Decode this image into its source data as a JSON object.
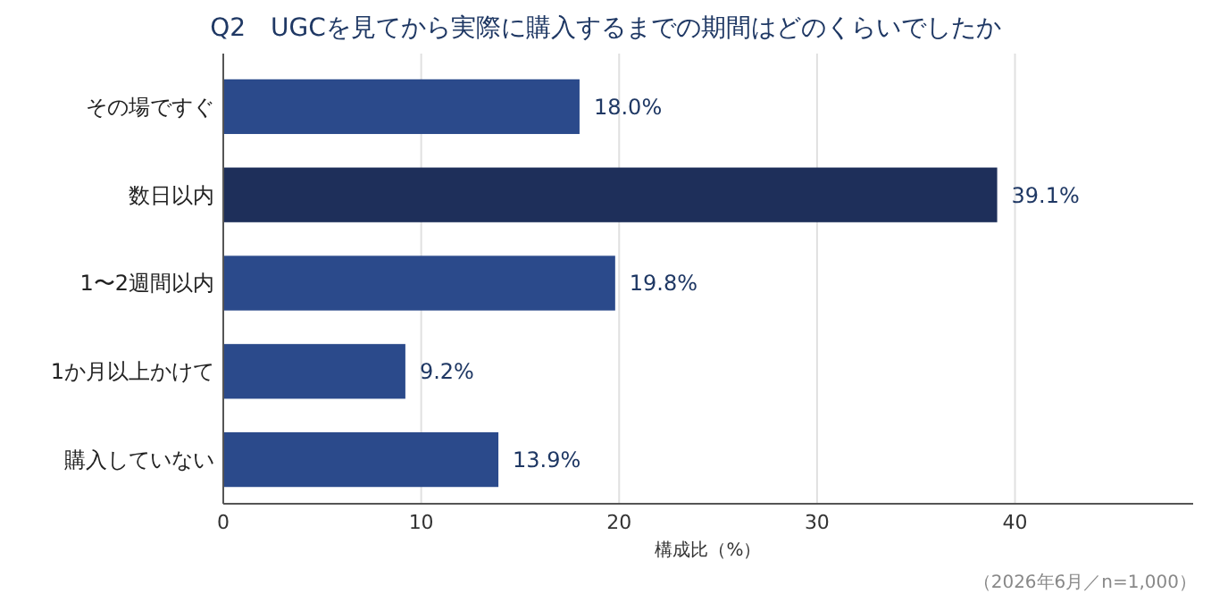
{
  "chart_data": {
    "type": "bar",
    "orientation": "horizontal",
    "title": "Q2　UGCを見てから実際に購入するまでの期間はどのくらいでしたか",
    "categories": [
      "その場ですぐ",
      "数日以内",
      "1〜2週間以内",
      "1か月以上かけて",
      "購入していない"
    ],
    "values": [
      18.0,
      39.1,
      19.8,
      9.2,
      13.9
    ],
    "colors": [
      "#2b4a8b",
      "#1e2f5a",
      "#2b4a8b",
      "#2b4a8b",
      "#2b4a8b"
    ],
    "value_labels": [
      "18.0%",
      "39.1%",
      "19.8%",
      "9.2%",
      "13.9%"
    ],
    "xlim": [
      0,
      49
    ],
    "xticks": [
      0,
      10,
      20,
      30,
      40
    ],
    "grid": "x",
    "xlabel": "構成比（%）",
    "annotations": [
      "（2026年6月／n=1,000）"
    ]
  }
}
